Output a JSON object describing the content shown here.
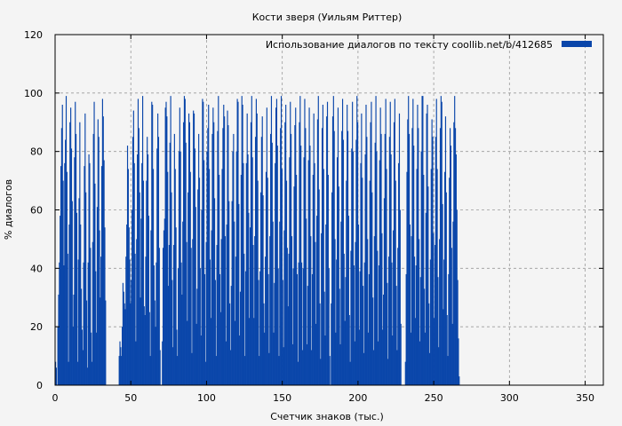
{
  "chart_data": {
    "type": "bar",
    "title": "Кости зверя (Уильям Риттер)",
    "xlabel": "Счетчик знаков (тыс.)",
    "ylabel": "% диалогов",
    "xlim": [
      0,
      362
    ],
    "ylim": [
      0,
      120
    ],
    "xticks": [
      0,
      50,
      100,
      150,
      200,
      250,
      300,
      350
    ],
    "yticks": [
      0,
      20,
      40,
      60,
      80,
      100,
      120
    ],
    "grid": true,
    "legend_position": "top-right",
    "series": [
      {
        "name": "Использование диалогов по тексту  coollib.net/b/412685",
        "color": "#0a46aa",
        "x_start": 0,
        "x_step": 0.5,
        "values": [
          8,
          6,
          0,
          20,
          31,
          42,
          58,
          75,
          88,
          96,
          70,
          41,
          76,
          84,
          99,
          73,
          45,
          8,
          55,
          90,
          95,
          81,
          63,
          20,
          31,
          78,
          97,
          86,
          59,
          8,
          43,
          64,
          90,
          55,
          33,
          19,
          12,
          42,
          75,
          93,
          66,
          29,
          6,
          42,
          79,
          76,
          47,
          18,
          8,
          49,
          86,
          97,
          69,
          39,
          18,
          61,
          91,
          85,
          53,
          30,
          44,
          75,
          98,
          92,
          77,
          54,
          29,
          0,
          0,
          0,
          0,
          0,
          0,
          0,
          0,
          0,
          0,
          0,
          0,
          0,
          0,
          0,
          0,
          0,
          10,
          15,
          13,
          10,
          20,
          35,
          32,
          28,
          26,
          44,
          55,
          82,
          74,
          54,
          43,
          28,
          36,
          60,
          85,
          94,
          76,
          45,
          15,
          50,
          79,
          98,
          88,
          66,
          30,
          57,
          76,
          99,
          70,
          27,
          24,
          44,
          70,
          85,
          79,
          58,
          25,
          10,
          53,
          97,
          96,
          74,
          41,
          29,
          20,
          42,
          81,
          93,
          85,
          47,
          12,
          0,
          0,
          15,
          47,
          53,
          57,
          95,
          97,
          92,
          73,
          34,
          48,
          83,
          99,
          66,
          36,
          13,
          48,
          86,
          74,
          54,
          19,
          10,
          40,
          80,
          95,
          80,
          42,
          31,
          56,
          90,
          99,
          98,
          83,
          49,
          22,
          66,
          93,
          90,
          73,
          47,
          11,
          50,
          94,
          93,
          81,
          61,
          21,
          33,
          67,
          86,
          71,
          40,
          17,
          60,
          98,
          97,
          77,
          38,
          8,
          49,
          80,
          88,
          96,
          74,
          43,
          23,
          53,
          86,
          95,
          90,
          64,
          36,
          10,
          48,
          87,
          99,
          72,
          38,
          25,
          50,
          74,
          88,
          96,
          92,
          51,
          15,
          55,
          94,
          89,
          63,
          28,
          12,
          34,
          63,
          80,
          86,
          56,
          22,
          44,
          80,
          98,
          97,
          62,
          17,
          32,
          72,
          99,
          96,
          76,
          45,
          10,
          39,
          76,
          93,
          79,
          59,
          23,
          54,
          90,
          99,
          78,
          48,
          23,
          51,
          85,
          98,
          93,
          70,
          36,
          10,
          39,
          66,
          85,
          92,
          65,
          28,
          18,
          44,
          73,
          95,
          71,
          38,
          11,
          51,
          86,
          99,
          83,
          56,
          18,
          35,
          76,
          95,
          98,
          82,
          40,
          10,
          56,
          88,
          99,
          74,
          36,
          13,
          53,
          90,
          96,
          70,
          47,
          27,
          45,
          78,
          97,
          86,
          51,
          14,
          40,
          68,
          89,
          95,
          72,
          38,
          8,
          42,
          90,
          99,
          82,
          42,
          12,
          40,
          78,
          98,
          88,
          57,
          14,
          34,
          77,
          95,
          82,
          51,
          12,
          38,
          72,
          93,
          76,
          49,
          21,
          58,
          91,
          99,
          67,
          28,
          9,
          52,
          88,
          96,
          74,
          32,
          17,
          55,
          92,
          97,
          72,
          40,
          10,
          0,
          28,
          66,
          92,
          99,
          87,
          50,
          18,
          43,
          78,
          95,
          68,
          33,
          14,
          56,
          87,
          98,
          84,
          45,
          22,
          37,
          70,
          96,
          87,
          58,
          24,
          8,
          46,
          81,
          97,
          80,
          41,
          15,
          49,
          84,
          99,
          90,
          55,
          19,
          39,
          76,
          93,
          71,
          34,
          11,
          42,
          79,
          96,
          85,
          50,
          18,
          38,
          70,
          90,
          97,
          66,
          30,
          12,
          51,
          83,
          99,
          80,
          46,
          15,
          41,
          77,
          95,
          86,
          52,
          19,
          31,
          64,
          86,
          98,
          74,
          35,
          9,
          44,
          85,
          97,
          79,
          42,
          17,
          53,
          90,
          98,
          70,
          34,
          12,
          47,
          76,
          93,
          60,
          21,
          0,
          0,
          0,
          0,
          0,
          8,
          38,
          73,
          91,
          99,
          86,
          55,
          18,
          51,
          88,
          98,
          82,
          44,
          23,
          41,
          74,
          96,
          88,
          50,
          15,
          37,
          80,
          99,
          99,
          72,
          33,
          18,
          59,
          93,
          96,
          68,
          28,
          11,
          43,
          74,
          91,
          85,
          52,
          23,
          48,
          85,
          98,
          74,
          37,
          13,
          50,
          88,
          99,
          97,
          62,
          26,
          43,
          73,
          92,
          66,
          24,
          10,
          38,
          71,
          88,
          82,
          47,
          21,
          56,
          90,
          99,
          88,
          79,
          60,
          36,
          16,
          3
        ]
      }
    ]
  }
}
